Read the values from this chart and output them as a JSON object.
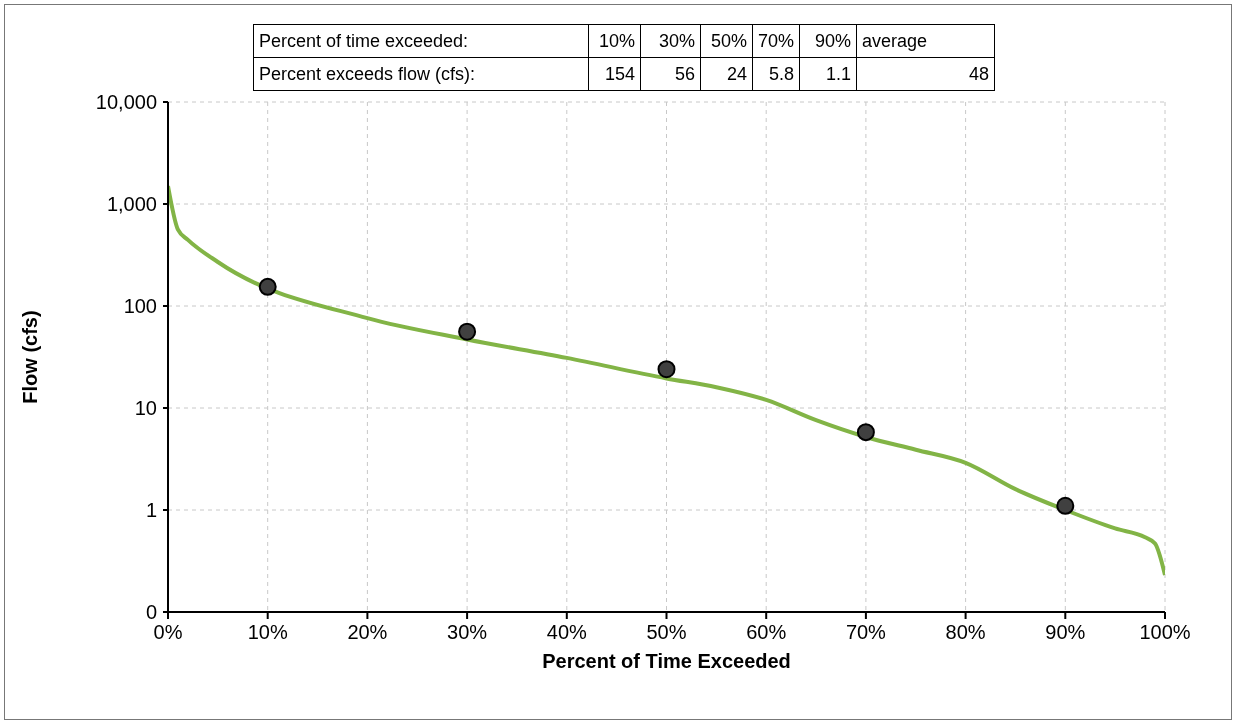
{
  "chart_data": {
    "type": "line",
    "xlabel": "Percent of Time Exceeded",
    "ylabel": "Flow (cfs)",
    "log": "y",
    "grid": true,
    "xlim": [
      0,
      100
    ],
    "xticks": [
      {
        "value": 0,
        "label": "0%"
      },
      {
        "value": 10,
        "label": "10%"
      },
      {
        "value": 20,
        "label": "20%"
      },
      {
        "value": 30,
        "label": "30%"
      },
      {
        "value": 40,
        "label": "40%"
      },
      {
        "value": 50,
        "label": "50%"
      },
      {
        "value": 60,
        "label": "60%"
      },
      {
        "value": 70,
        "label": "70%"
      },
      {
        "value": 80,
        "label": "80%"
      },
      {
        "value": 90,
        "label": "90%"
      },
      {
        "value": 100,
        "label": "100%"
      }
    ],
    "ylim": [
      0.1,
      10000
    ],
    "yticks": [
      {
        "value": 0.1,
        "label": "0"
      },
      1,
      10,
      100,
      {
        "value": 1000,
        "label": "1,000"
      },
      {
        "value": 10000,
        "label": "10,000"
      }
    ],
    "annotations": [
      "Percent of time exceeded:",
      "10%",
      "30%",
      "50%",
      "70%",
      "90%",
      "average",
      "Percent exceeds flow (cfs):",
      "154",
      "56",
      "24",
      "5.8",
      "1.1",
      "48"
    ],
    "series": [
      {
        "color": "#82b446",
        "marker": "none",
        "line_style": "solid",
        "x": [
          0,
          1,
          2,
          5,
          20,
          30,
          40,
          50,
          55,
          60,
          65,
          70,
          75,
          80,
          85,
          90,
          95,
          98,
          99,
          100
        ],
        "values": [
          1500,
          560,
          445,
          270,
          76,
          47,
          31,
          19.5,
          16,
          12,
          7.6,
          5.2,
          3.9,
          2.9,
          1.6,
          1.0,
          0.66,
          0.54,
          0.47,
          0.23
        ]
      },
      {
        "type": "scatter",
        "color": "#404040",
        "marker": "circle",
        "x": [
          10,
          30,
          50,
          70,
          90
        ],
        "values": [
          154,
          56,
          24,
          5.8,
          1.1
        ]
      }
    ]
  }
}
